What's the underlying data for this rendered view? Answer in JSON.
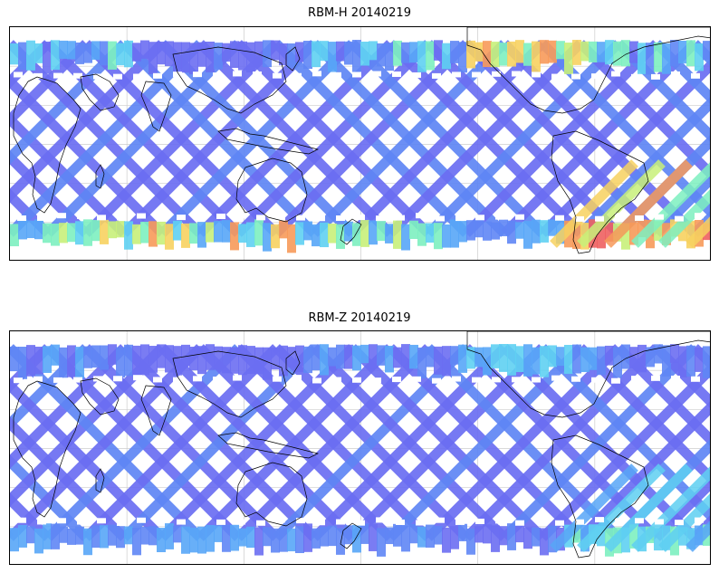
{
  "panels": [
    {
      "title": "RBM-H 20140219",
      "palette": [
        "#6b6ef2",
        "#5f86f5",
        "#58a6f7",
        "#5fd0f2",
        "#7df0c0",
        "#c8f07a",
        "#f7d260",
        "#f79a5a",
        "#ee6060"
      ],
      "intensity": {
        "north_band_level": 0.45,
        "south_band_level": 0.75,
        "orbit_level": 0.05,
        "south_atlantic_level": 0.9
      }
    },
    {
      "title": "RBM-Z 20140219",
      "palette": [
        "#6b6ef2",
        "#5f86f5",
        "#58a6f7",
        "#5fd0f2",
        "#7df0c0",
        "#c8f07a",
        "#f7d260",
        "#f79a5a",
        "#ee6060"
      ],
      "intensity": {
        "north_band_level": 0.22,
        "south_band_level": 0.3,
        "orbit_level": 0.03,
        "south_atlantic_level": 0.45
      }
    }
  ],
  "map": {
    "grid_color": "#cccccc",
    "coast_color": "#000000"
  }
}
